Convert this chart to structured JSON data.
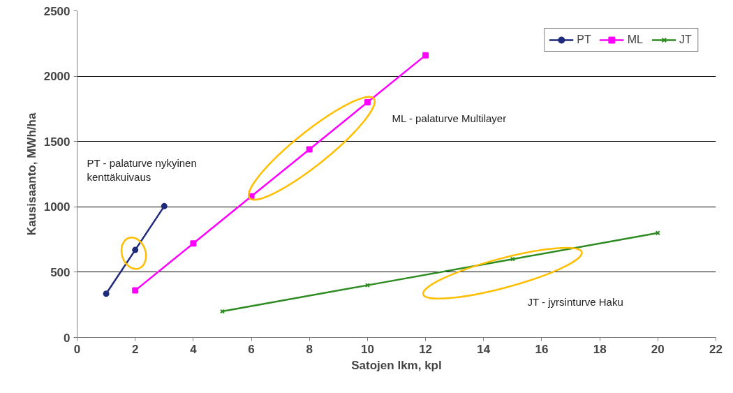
{
  "chart_data": {
    "type": "line",
    "xlabel": "Satojen lkm, kpl",
    "ylabel": "Kausisaanto, MWh/ha",
    "xlim": [
      0,
      22
    ],
    "xticks": [
      0,
      2,
      4,
      6,
      8,
      10,
      12,
      14,
      16,
      18,
      20,
      22
    ],
    "ylim": [
      0,
      2500
    ],
    "yticks": [
      0,
      500,
      1000,
      1500,
      2000,
      2500
    ],
    "grid": "y",
    "legend": "top right",
    "line_style": "solid",
    "series": [
      {
        "name": "PT",
        "color": "#1f2a7a",
        "marker": "circle",
        "x": [
          1,
          2,
          3
        ],
        "values": [
          335,
          670,
          1005
        ]
      },
      {
        "name": "ML",
        "color": "#ff00ff",
        "marker": "square",
        "x": [
          2,
          4,
          6,
          8,
          10,
          12
        ],
        "values": [
          360,
          720,
          1080,
          1440,
          1800,
          2160
        ]
      },
      {
        "name": "JT",
        "color": "#2e8b22",
        "marker": "cross",
        "x": [
          5,
          10,
          15,
          20
        ],
        "values": [
          200,
          400,
          600,
          800
        ]
      }
    ],
    "annotations": [
      "ML - palaturve Multilayer",
      "PT - palaturve nykyinen\nkenttäkuivaus",
      "JT - jyrsinturve Haku"
    ]
  }
}
